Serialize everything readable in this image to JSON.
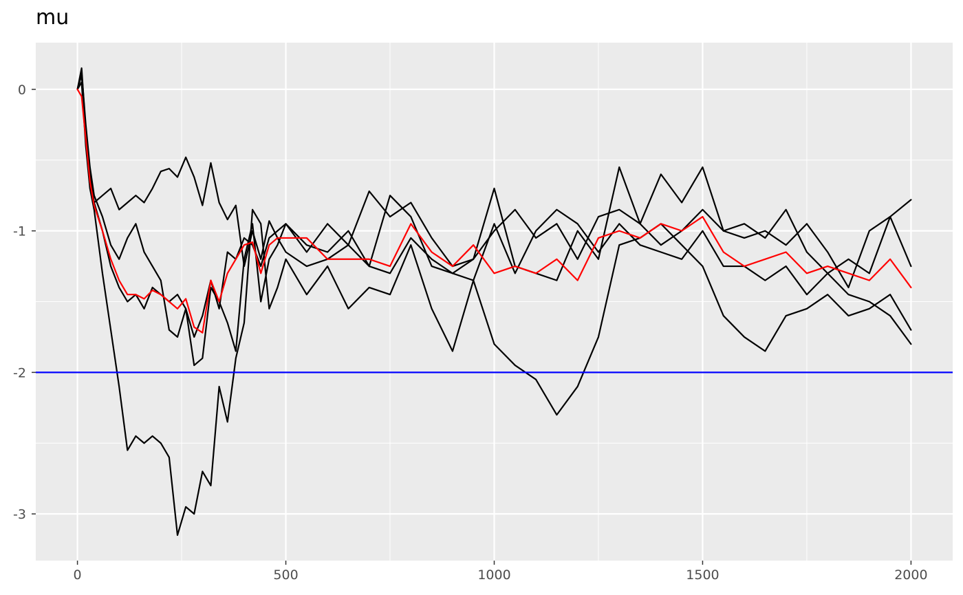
{
  "chart_data": {
    "type": "line",
    "title": "mu",
    "xlabel": "",
    "ylabel": "",
    "xlim": [
      -100,
      2100
    ],
    "ylim": [
      -3.33,
      0.33
    ],
    "x_ticks": [
      0,
      500,
      1000,
      1500,
      2000
    ],
    "x_tick_labels": [
      "0",
      "500",
      "1000",
      "1500",
      "2000"
    ],
    "y_ticks": [
      0,
      -1,
      -2,
      -3
    ],
    "y_tick_labels": [
      "0",
      "-1",
      "-2",
      "-3"
    ],
    "grid": true,
    "legend": "none",
    "hline": {
      "y": -2,
      "color": "#0000ff"
    },
    "series": [
      {
        "color": "#000000",
        "x": [
          0,
          10,
          20,
          30,
          40,
          60,
          80,
          100,
          120,
          140,
          160,
          180,
          200,
          220,
          240,
          260,
          280,
          300,
          320,
          340,
          360,
          380,
          400,
          420,
          440,
          460,
          480,
          500,
          550,
          600,
          650,
          700,
          750,
          800,
          850,
          900,
          950,
          1000,
          1050,
          1100,
          1150,
          1200,
          1250,
          1300,
          1350,
          1400,
          1450,
          1500,
          1550,
          1600,
          1650,
          1700,
          1750,
          1800,
          1850,
          1900,
          1950,
          2000
        ],
        "y": [
          0,
          0.1,
          -0.3,
          -0.6,
          -0.8,
          -0.75,
          -0.7,
          -0.85,
          -0.8,
          -0.75,
          -0.8,
          -0.7,
          -0.58,
          -0.56,
          -0.62,
          -0.48,
          -0.62,
          -0.82,
          -0.52,
          -0.8,
          -0.92,
          -0.82,
          -1.25,
          -1.0,
          -1.2,
          -0.93,
          -1.05,
          -1.15,
          -1.25,
          -1.2,
          -1.1,
          -0.72,
          -0.9,
          -0.8,
          -1.05,
          -1.25,
          -1.2,
          -1.0,
          -0.85,
          -1.05,
          -0.95,
          -1.2,
          -0.9,
          -0.85,
          -0.95,
          -1.1,
          -1.0,
          -0.85,
          -1.0,
          -1.05,
          -1.0,
          -1.1,
          -0.95,
          -1.15,
          -1.4,
          -1.0,
          -0.9,
          -0.78
        ]
      },
      {
        "color": "#000000",
        "x": [
          0,
          10,
          20,
          30,
          40,
          60,
          80,
          100,
          120,
          140,
          160,
          180,
          200,
          220,
          240,
          260,
          280,
          300,
          320,
          340,
          360,
          380,
          400,
          420,
          440,
          460,
          480,
          500,
          550,
          600,
          650,
          700,
          750,
          800,
          850,
          900,
          950,
          1000,
          1050,
          1100,
          1150,
          1200,
          1250,
          1300,
          1350,
          1400,
          1450,
          1500,
          1550,
          1600,
          1650,
          1700,
          1750,
          1800,
          1850,
          1900,
          1950,
          2000
        ],
        "y": [
          0,
          0.12,
          -0.25,
          -0.55,
          -0.75,
          -0.9,
          -1.1,
          -1.2,
          -1.05,
          -0.95,
          -1.15,
          -1.25,
          -1.35,
          -1.7,
          -1.75,
          -1.55,
          -1.95,
          -1.9,
          -1.4,
          -1.5,
          -1.65,
          -1.85,
          -1.2,
          -0.95,
          -1.5,
          -1.2,
          -1.1,
          -0.95,
          -1.15,
          -0.95,
          -1.1,
          -1.25,
          -1.3,
          -1.05,
          -1.2,
          -1.3,
          -1.35,
          -0.95,
          -1.3,
          -1.0,
          -0.85,
          -0.95,
          -1.15,
          -0.95,
          -1.1,
          -1.15,
          -1.2,
          -1.0,
          -1.25,
          -1.25,
          -1.35,
          -1.25,
          -1.45,
          -1.3,
          -1.45,
          -1.5,
          -1.6,
          -1.8
        ]
      },
      {
        "color": "#000000",
        "x": [
          0,
          10,
          20,
          30,
          40,
          60,
          80,
          100,
          120,
          140,
          160,
          180,
          200,
          220,
          240,
          260,
          280,
          300,
          320,
          340,
          360,
          380,
          400,
          420,
          440,
          460,
          480,
          500,
          550,
          600,
          650,
          700,
          750,
          800,
          850,
          900,
          950,
          1000,
          1050,
          1100,
          1150,
          1200,
          1250,
          1300,
          1350,
          1400,
          1450,
          1500,
          1550,
          1600,
          1650,
          1700,
          1750,
          1800,
          1850,
          1900,
          1950,
          2000
        ],
        "y": [
          0,
          0.05,
          -0.4,
          -0.7,
          -0.85,
          -1.3,
          -1.7,
          -2.1,
          -2.55,
          -2.45,
          -2.5,
          -2.45,
          -2.5,
          -2.6,
          -3.15,
          -2.95,
          -3.0,
          -2.7,
          -2.8,
          -2.1,
          -2.35,
          -1.9,
          -1.65,
          -0.85,
          -0.95,
          -1.55,
          -1.4,
          -1.2,
          -1.45,
          -1.25,
          -1.55,
          -1.4,
          -1.45,
          -1.1,
          -1.55,
          -1.85,
          -1.35,
          -1.8,
          -1.95,
          -2.05,
          -2.3,
          -2.1,
          -1.75,
          -1.1,
          -1.05,
          -0.95,
          -1.1,
          -1.25,
          -1.6,
          -1.75,
          -1.85,
          -1.6,
          -1.55,
          -1.45,
          -1.6,
          -1.55,
          -1.45,
          -1.7
        ]
      },
      {
        "color": "#000000",
        "x": [
          0,
          10,
          20,
          30,
          40,
          60,
          80,
          100,
          120,
          140,
          160,
          180,
          200,
          220,
          240,
          260,
          280,
          300,
          320,
          340,
          360,
          380,
          400,
          420,
          440,
          460,
          480,
          500,
          550,
          600,
          650,
          700,
          750,
          800,
          850,
          900,
          950,
          1000,
          1050,
          1100,
          1150,
          1200,
          1250,
          1300,
          1350,
          1400,
          1450,
          1500,
          1550,
          1600,
          1650,
          1700,
          1750,
          1800,
          1850,
          1900,
          1950,
          2000
        ],
        "y": [
          0,
          0.15,
          -0.3,
          -0.65,
          -0.8,
          -1.0,
          -1.25,
          -1.4,
          -1.5,
          -1.45,
          -1.55,
          -1.4,
          -1.45,
          -1.5,
          -1.45,
          -1.55,
          -1.75,
          -1.6,
          -1.35,
          -1.55,
          -1.15,
          -1.2,
          -1.05,
          -1.1,
          -1.25,
          -1.05,
          -1.0,
          -0.95,
          -1.1,
          -1.15,
          -1.0,
          -1.25,
          -0.75,
          -0.9,
          -1.25,
          -1.3,
          -1.2,
          -0.7,
          -1.25,
          -1.3,
          -1.35,
          -1.0,
          -1.2,
          -0.55,
          -0.95,
          -0.6,
          -0.8,
          -0.55,
          -1.0,
          -0.95,
          -1.05,
          -0.85,
          -1.15,
          -1.3,
          -1.2,
          -1.3,
          -0.9,
          -1.25
        ]
      },
      {
        "color": "#ff0000",
        "x": [
          0,
          10,
          20,
          30,
          40,
          60,
          80,
          100,
          120,
          140,
          160,
          180,
          200,
          220,
          240,
          260,
          280,
          300,
          320,
          340,
          360,
          380,
          400,
          420,
          440,
          460,
          480,
          500,
          550,
          600,
          650,
          700,
          750,
          800,
          850,
          900,
          950,
          1000,
          1050,
          1100,
          1150,
          1200,
          1250,
          1300,
          1350,
          1400,
          1450,
          1500,
          1550,
          1600,
          1650,
          1700,
          1750,
          1800,
          1850,
          1900,
          1950,
          2000
        ],
        "y": [
          0,
          -0.05,
          -0.35,
          -0.65,
          -0.82,
          -1.0,
          -1.2,
          -1.35,
          -1.45,
          -1.45,
          -1.48,
          -1.42,
          -1.45,
          -1.5,
          -1.55,
          -1.48,
          -1.68,
          -1.72,
          -1.35,
          -1.5,
          -1.3,
          -1.2,
          -1.1,
          -1.08,
          -1.3,
          -1.1,
          -1.05,
          -1.05,
          -1.05,
          -1.2,
          -1.2,
          -1.2,
          -1.25,
          -0.95,
          -1.15,
          -1.25,
          -1.1,
          -1.3,
          -1.25,
          -1.3,
          -1.2,
          -1.35,
          -1.05,
          -1.0,
          -1.05,
          -0.95,
          -1.0,
          -0.9,
          -1.15,
          -1.25,
          -1.2,
          -1.15,
          -1.3,
          -1.25,
          -1.3,
          -1.35,
          -1.2,
          -1.4
        ]
      }
    ]
  }
}
